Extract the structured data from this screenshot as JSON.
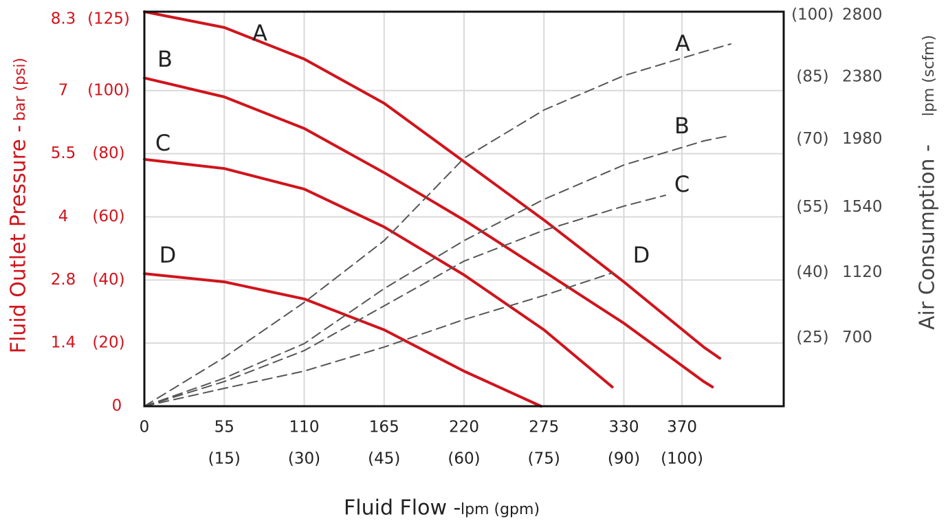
{
  "chart_data": {
    "type": "line",
    "x_title": "Fluid Flow -",
    "x_title_units": "lpm (gpm)",
    "y_title": "Fluid Outlet Pressure -",
    "y_title_units": "bar (psi)",
    "y2_title": "Air Consumption -",
    "y2_title_units": "lpm (scfm)",
    "xlim": [
      0,
      440
    ],
    "xticks": [
      0,
      55,
      110,
      165,
      220,
      275,
      330,
      370
    ],
    "xtick_gpm_labels": [
      null,
      "(15)",
      "(30)",
      "(45)",
      "(60)",
      "(75)",
      "(90)",
      "(100)"
    ],
    "ylim": [
      0,
      125
    ],
    "yticks": [
      0,
      {
        "value": 20,
        "label": "(20)"
      },
      {
        "value": 40,
        "label": "(40)"
      },
      {
        "value": 60,
        "label": "(60)"
      },
      {
        "value": 80,
        "label": "(80)"
      },
      {
        "value": 100,
        "label": "(100)"
      },
      {
        "value": 125,
        "label": "(125)"
      }
    ],
    "ytick_bar_labels": [
      null,
      "1.4",
      "2.8",
      "4",
      "5.5",
      "7",
      "8.3"
    ],
    "y2lim": [
      260,
      2800
    ],
    "y2ticks": [
      700,
      1120,
      1540,
      1980,
      2380,
      2800
    ],
    "y2tick_scfm_labels": [
      "(25)",
      "(40)",
      "(55)",
      "(70)",
      "(85)",
      "(100)"
    ],
    "grid": true,
    "series": [
      {
        "name": "A",
        "color": "#d0141c",
        "style": "solid",
        "axis": "y",
        "x": [
          0,
          55,
          110,
          165,
          220,
          275,
          330,
          385,
          396
        ],
        "values": [
          125,
          120,
          110,
          96,
          77.5,
          59,
          39.4,
          18.7,
          15.2
        ]
      },
      {
        "name": "B",
        "color": "#d0141c",
        "style": "solid",
        "axis": "y",
        "x": [
          0,
          55,
          110,
          165,
          220,
          275,
          330,
          385,
          391
        ],
        "values": [
          104,
          98,
          88,
          74,
          59,
          42.7,
          26.3,
          7.8,
          6.1
        ]
      },
      {
        "name": "C",
        "color": "#d0141c",
        "style": "solid",
        "axis": "y",
        "x": [
          0,
          55,
          110,
          165,
          220,
          275,
          322
        ],
        "values": [
          78.2,
          75.3,
          68.8,
          56.8,
          41.6,
          24.2,
          6.1
        ]
      },
      {
        "name": "D",
        "color": "#d0141c",
        "style": "solid",
        "axis": "y",
        "x": [
          0,
          55,
          110,
          165,
          220,
          273
        ],
        "values": [
          42,
          39.4,
          34,
          24.2,
          11.1,
          0
        ]
      },
      {
        "name": "A",
        "color": "#555555",
        "style": "dashed",
        "axis": "y2",
        "x": [
          0,
          55,
          110,
          165,
          220,
          275,
          330,
          385,
          403.5
        ],
        "values": [
          260,
          574,
          928,
          1326,
          1857,
          2167,
          2388,
          2543,
          2592
        ]
      },
      {
        "name": "B",
        "color": "#555555",
        "style": "dashed",
        "axis": "y2",
        "x": [
          0,
          55,
          110,
          165,
          220,
          275,
          330,
          385,
          403.5
        ],
        "values": [
          260,
          441,
          663,
          1017,
          1326,
          1592,
          1813,
          1968,
          2003
        ]
      },
      {
        "name": "C",
        "color": "#555555",
        "style": "dashed",
        "axis": "y2",
        "x": [
          0,
          55,
          110,
          165,
          220,
          275,
          330,
          358.6
        ],
        "values": [
          260,
          419,
          618,
          906,
          1194,
          1393,
          1548,
          1618
        ]
      },
      {
        "name": "D",
        "color": "#555555",
        "style": "dashed",
        "axis": "y2",
        "x": [
          0,
          55,
          110,
          165,
          220,
          275,
          322
        ],
        "values": [
          260,
          375,
          486,
          641,
          818,
          973,
          1118
        ]
      }
    ]
  }
}
